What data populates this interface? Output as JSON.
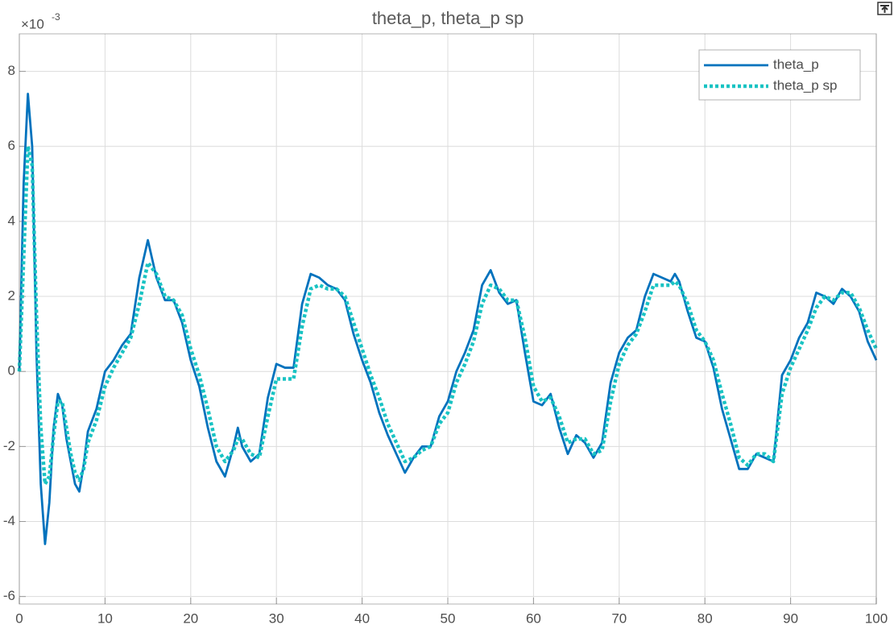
{
  "chart_data": {
    "type": "line",
    "title": "theta_p, theta_p sp",
    "y_multiplier": {
      "base": "×10",
      "exponent": "-3"
    },
    "x": [
      0,
      0.5,
      1,
      1.5,
      2,
      2.5,
      3,
      3.5,
      4,
      4.5,
      5,
      5.5,
      6,
      6.5,
      7,
      7.5,
      8,
      9,
      10,
      11,
      12,
      13,
      14,
      15,
      16,
      17,
      18,
      19,
      20,
      21,
      22,
      23,
      24,
      25,
      25.5,
      26,
      27,
      28,
      29,
      30,
      31,
      32,
      33,
      34,
      35,
      36,
      37,
      38,
      39,
      40,
      41,
      42,
      43,
      44,
      45,
      46,
      47,
      48,
      49,
      50,
      51,
      52,
      53,
      54,
      55,
      56,
      57,
      58,
      59,
      60,
      61,
      62,
      63,
      64,
      65,
      66,
      67,
      68,
      69,
      70,
      71,
      72,
      73,
      74,
      75,
      76,
      76.5,
      77,
      78,
      79,
      80,
      81,
      82,
      83,
      84,
      85,
      86,
      87,
      88,
      89,
      90,
      91,
      92,
      93,
      94,
      95,
      96,
      97,
      98,
      99,
      100
    ],
    "series": [
      {
        "name": "theta_p",
        "color": "#0072bd",
        "line_style": "solid",
        "values": [
          0,
          5,
          7.4,
          6,
          0.5,
          -3,
          -4.6,
          -3.5,
          -1.5,
          -0.6,
          -0.9,
          -1.8,
          -2.4,
          -3,
          -3.2,
          -2.5,
          -1.6,
          -1.0,
          0,
          0.3,
          0.7,
          1.0,
          2.5,
          3.5,
          2.5,
          1.9,
          1.9,
          1.3,
          0.3,
          -0.4,
          -1.5,
          -2.4,
          -2.8,
          -2.0,
          -1.5,
          -2.0,
          -2.4,
          -2.2,
          -0.7,
          0.2,
          0.1,
          0.1,
          1.8,
          2.6,
          2.5,
          2.3,
          2.2,
          1.9,
          1.0,
          0.3,
          -0.3,
          -1.1,
          -1.7,
          -2.2,
          -2.7,
          -2.3,
          -2.0,
          -2.0,
          -1.2,
          -0.8,
          0,
          0.5,
          1.1,
          2.3,
          2.7,
          2.1,
          1.8,
          1.9,
          0.5,
          -0.8,
          -0.9,
          -0.6,
          -1.5,
          -2.2,
          -1.7,
          -1.9,
          -2.3,
          -1.9,
          -0.3,
          0.5,
          0.9,
          1.1,
          2.0,
          2.6,
          2.5,
          2.4,
          2.6,
          2.4,
          1.6,
          0.9,
          0.8,
          0.1,
          -1.0,
          -1.8,
          -2.6,
          -2.6,
          -2.2,
          -2.3,
          -2.4,
          -0.1,
          0.3,
          0.9,
          1.3,
          2.1,
          2.0,
          1.8,
          2.2,
          2.0,
          1.6,
          0.8,
          0.3
        ]
      },
      {
        "name": "theta_p sp",
        "color": "#19c3c3",
        "line_style": "dotted",
        "values": [
          0,
          3,
          6.0,
          5.5,
          1.5,
          -1.5,
          -3.0,
          -2.8,
          -1.7,
          -0.8,
          -0.8,
          -1.5,
          -2.2,
          -2.7,
          -2.9,
          -2.6,
          -1.9,
          -1.3,
          -0.4,
          0.1,
          0.5,
          0.9,
          1.8,
          2.9,
          2.6,
          2.0,
          1.9,
          1.5,
          0.6,
          -0.1,
          -1.0,
          -2.0,
          -2.4,
          -2.1,
          -1.8,
          -1.8,
          -2.2,
          -2.3,
          -1.2,
          -0.2,
          -0.2,
          -0.2,
          1.2,
          2.2,
          2.3,
          2.2,
          2.2,
          2.0,
          1.3,
          0.6,
          -0.1,
          -0.7,
          -1.4,
          -1.9,
          -2.4,
          -2.3,
          -2.1,
          -2.0,
          -1.4,
          -1.1,
          -0.3,
          0.2,
          0.8,
          1.8,
          2.3,
          2.2,
          1.9,
          1.9,
          0.9,
          -0.4,
          -0.8,
          -0.7,
          -1.2,
          -1.9,
          -1.8,
          -1.8,
          -2.2,
          -2.1,
          -0.8,
          0.2,
          0.7,
          1.0,
          1.6,
          2.3,
          2.3,
          2.3,
          2.4,
          2.3,
          1.8,
          1.1,
          0.8,
          0.3,
          -0.6,
          -1.4,
          -2.3,
          -2.5,
          -2.2,
          -2.2,
          -2.4,
          -0.6,
          0.1,
          0.6,
          1.1,
          1.7,
          2.0,
          1.9,
          2.1,
          2.1,
          1.7,
          1.1,
          0.6
        ]
      }
    ],
    "xlim": [
      0,
      100
    ],
    "xticks": [
      0,
      10,
      20,
      30,
      40,
      50,
      60,
      70,
      80,
      90,
      100
    ],
    "ylim": [
      -6.2,
      9
    ],
    "yticks": [
      -6,
      -4,
      -2,
      0,
      2,
      4,
      6,
      8
    ],
    "grid": true,
    "legend": "northeast"
  }
}
